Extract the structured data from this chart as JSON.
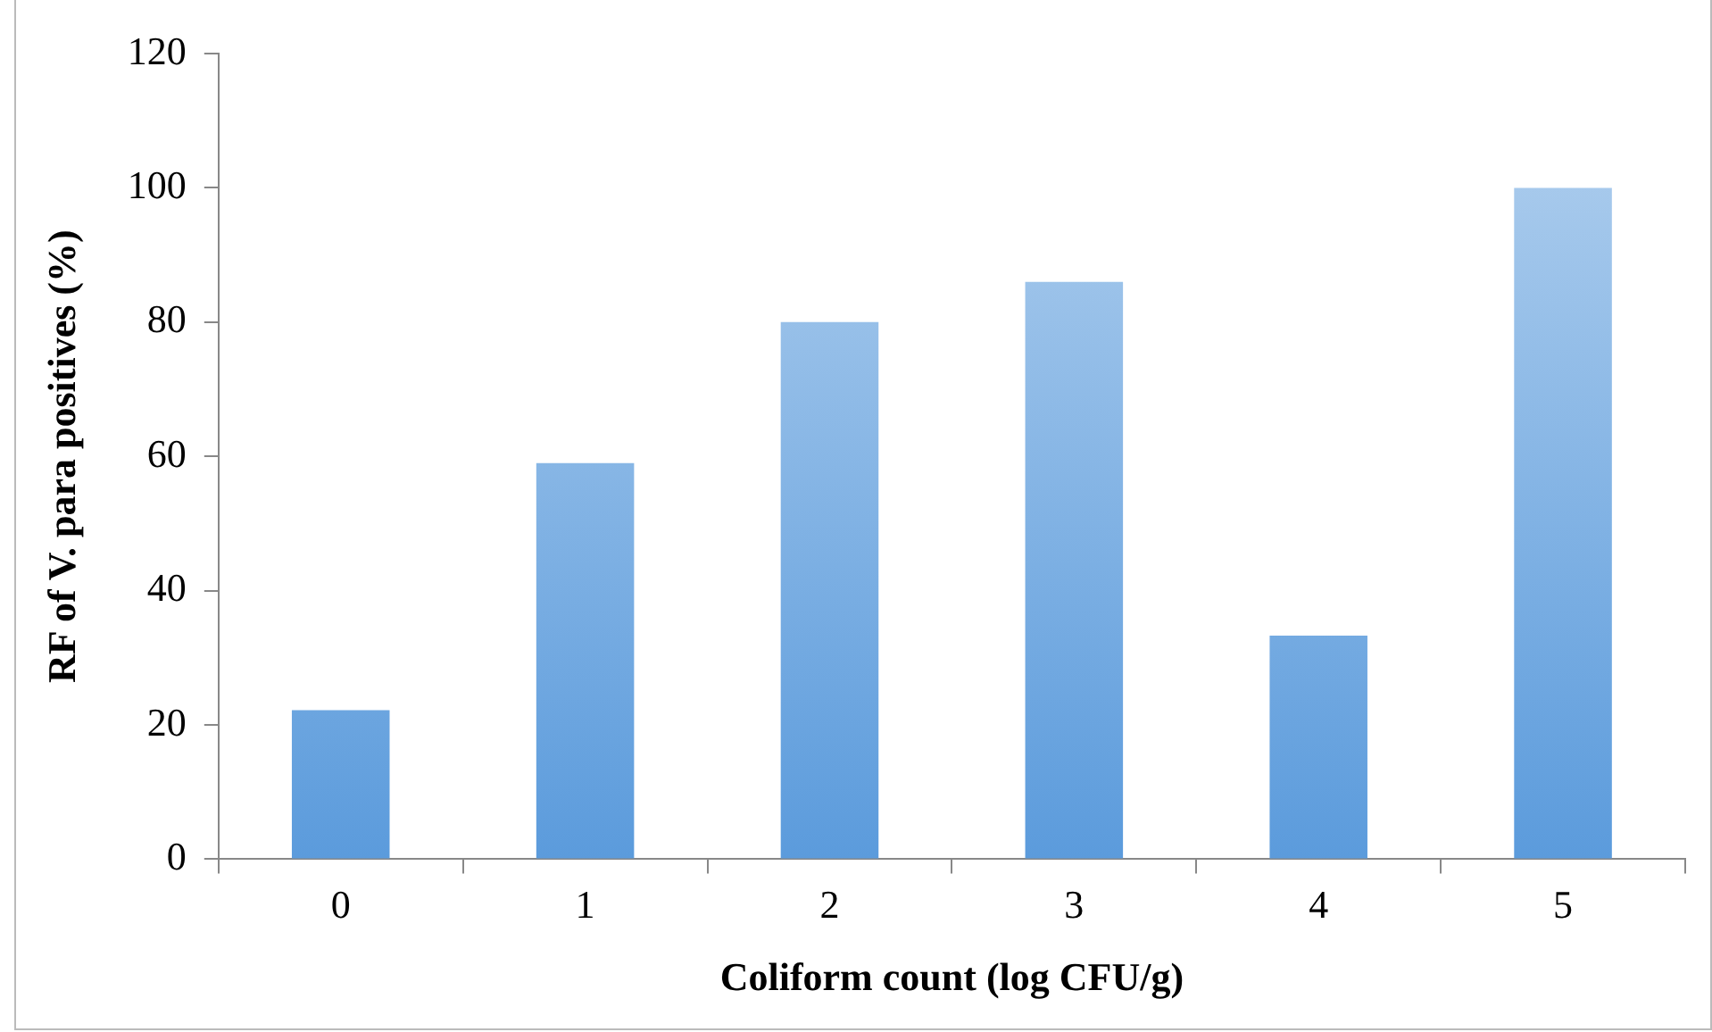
{
  "chart_data": {
    "type": "bar",
    "xlabel": "Coliform count (log CFU/g)",
    "ylabel": "RF of V. para positives (%)",
    "categories": [
      "0",
      "1",
      "2",
      "3",
      "4",
      "5"
    ],
    "values": [
      22.2,
      59,
      80,
      86,
      33.3,
      100
    ],
    "color": "#5b9bdc",
    "ylim": [
      0,
      120
    ],
    "yticks": [
      0,
      20,
      40,
      60,
      80,
      100,
      120
    ],
    "grid": false,
    "legend": false
  }
}
